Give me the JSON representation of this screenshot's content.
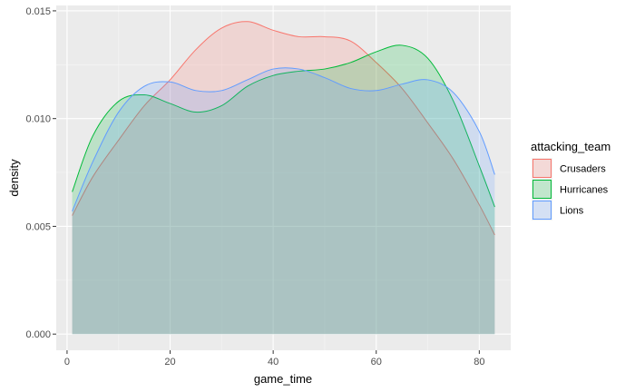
{
  "chart_data": {
    "type": "area",
    "subtype": "density",
    "title": "",
    "xlabel": "game_time",
    "ylabel": "density",
    "xlim": [
      -2.1,
      86.1
    ],
    "ylim": [
      -0.00075,
      0.01525
    ],
    "x_ticks": [
      0,
      20,
      40,
      60,
      80
    ],
    "x_tick_labels": [
      "0",
      "20",
      "40",
      "60",
      "80"
    ],
    "y_ticks": [
      0,
      0.005,
      0.01,
      0.015
    ],
    "y_tick_labels": [
      "0.000",
      "0.005",
      "0.010",
      "0.015"
    ],
    "grid": true,
    "legend": {
      "title": "attacking_team",
      "position": "right",
      "items": [
        "Crusaders",
        "Hurricanes",
        "Lions"
      ]
    },
    "series": [
      {
        "name": "Crusaders",
        "stroke": "#F8766D",
        "fill": "#F8766D",
        "x": [
          1,
          5,
          10,
          15,
          20,
          25,
          30,
          35,
          40,
          45,
          50,
          55,
          60,
          65,
          70,
          75,
          80,
          83
        ],
        "y": [
          0.0055,
          0.0073,
          0.009,
          0.0106,
          0.0118,
          0.0132,
          0.0142,
          0.0145,
          0.0141,
          0.0138,
          0.0138,
          0.0136,
          0.0126,
          0.0114,
          0.0098,
          0.0081,
          0.006,
          0.0046
        ]
      },
      {
        "name": "Hurricanes",
        "stroke": "#00BA38",
        "fill": "#00BA38",
        "x": [
          1,
          5,
          10,
          15,
          20,
          25,
          30,
          35,
          40,
          45,
          50,
          55,
          60,
          65,
          70,
          75,
          80,
          83
        ],
        "y": [
          0.0066,
          0.0092,
          0.0108,
          0.0111,
          0.0107,
          0.0103,
          0.0106,
          0.0115,
          0.012,
          0.0122,
          0.0123,
          0.0126,
          0.0131,
          0.0134,
          0.0128,
          0.0108,
          0.0078,
          0.0059
        ]
      },
      {
        "name": "Lions",
        "stroke": "#619CFF",
        "fill": "#619CFF",
        "x": [
          1,
          5,
          10,
          15,
          20,
          25,
          30,
          35,
          40,
          45,
          50,
          55,
          60,
          65,
          70,
          75,
          80,
          83
        ],
        "y": [
          0.0057,
          0.008,
          0.0103,
          0.0115,
          0.0117,
          0.0113,
          0.0113,
          0.0118,
          0.0123,
          0.0123,
          0.0119,
          0.0114,
          0.0113,
          0.0116,
          0.0118,
          0.0112,
          0.0094,
          0.0074
        ]
      }
    ]
  }
}
